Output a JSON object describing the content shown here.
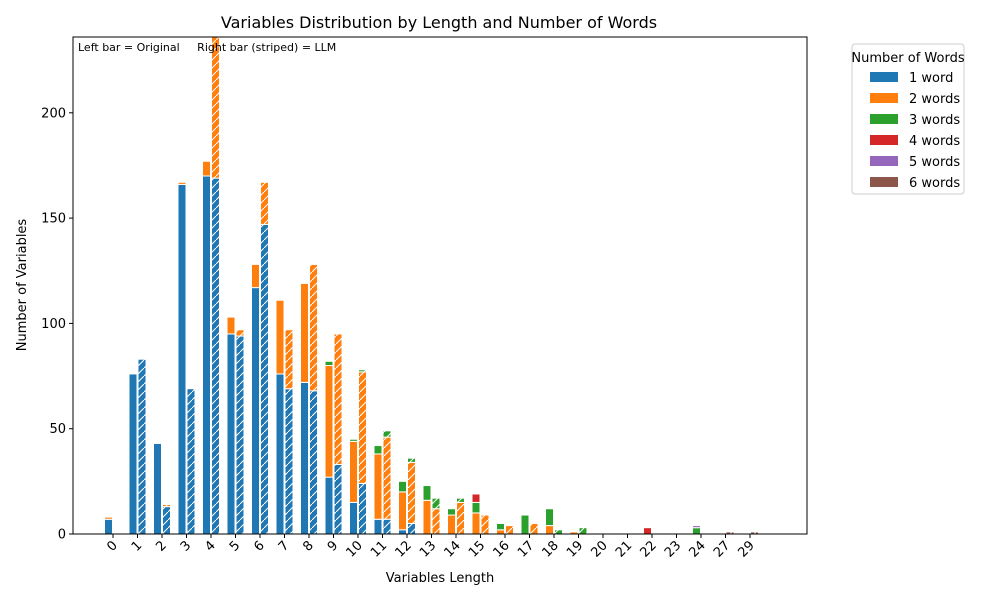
{
  "chart_data": {
    "type": "bar",
    "title": "Variables Distribution by Length and Number of Words",
    "xlabel": "Variables Length",
    "ylabel": "Number of Variables",
    "ylim": [
      0,
      236
    ],
    "yticks": [
      0,
      50,
      100,
      150,
      200
    ],
    "grid": false,
    "annotation": "Left bar = Original     Right bar (striped) = LLM",
    "legend": {
      "title": "Number of Words",
      "placement": "outside-right",
      "entries": [
        {
          "label": "1 word",
          "color": "#1f77b4"
        },
        {
          "label": "2 words",
          "color": "#ff7f0e"
        },
        {
          "label": "3 words",
          "color": "#2ca02c"
        },
        {
          "label": "4 words",
          "color": "#d62728"
        },
        {
          "label": "5 words",
          "color": "#9467bd"
        },
        {
          "label": "6 words",
          "color": "#8c564b"
        }
      ]
    },
    "categories": [
      "0",
      "1",
      "2",
      "3",
      "4",
      "5",
      "6",
      "7",
      "8",
      "9",
      "10",
      "11",
      "12",
      "13",
      "14",
      "15",
      "16",
      "17",
      "18",
      "19",
      "20",
      "21",
      "22",
      "23",
      "24",
      "27",
      "29"
    ],
    "series": [
      {
        "name": "1 word",
        "group": "Original",
        "values": [
          7,
          76,
          43,
          166,
          170,
          95,
          117,
          76,
          72,
          27,
          15,
          7,
          2,
          0,
          0,
          0,
          0,
          0,
          0,
          0,
          0,
          0,
          0,
          0,
          0,
          0,
          0
        ]
      },
      {
        "name": "2 words",
        "group": "Original",
        "values": [
          1,
          0,
          0,
          1,
          7,
          8,
          11,
          35,
          47,
          53,
          29,
          31,
          18,
          16,
          9,
          10,
          2,
          0,
          4,
          1,
          0,
          0,
          0,
          0,
          0,
          0,
          0
        ]
      },
      {
        "name": "3 words",
        "group": "Original",
        "values": [
          0,
          0,
          0,
          0,
          0,
          0,
          0,
          0,
          0,
          2,
          1,
          4,
          5,
          7,
          3,
          5,
          3,
          9,
          8,
          0,
          0,
          0,
          0,
          0,
          3,
          0,
          0
        ]
      },
      {
        "name": "4 words",
        "group": "Original",
        "values": [
          0,
          0,
          0,
          0,
          0,
          0,
          0,
          0,
          0,
          0,
          0,
          0,
          0,
          0,
          0,
          4,
          0,
          0,
          0,
          0,
          0,
          0,
          3,
          0,
          0,
          0,
          0
        ]
      },
      {
        "name": "5 words",
        "group": "Original",
        "values": [
          0,
          0,
          0,
          0,
          0,
          0,
          0,
          0,
          0,
          0,
          0,
          0,
          0,
          0,
          0,
          0,
          0,
          0,
          0,
          0,
          0,
          0,
          0,
          0,
          1,
          0,
          0
        ]
      },
      {
        "name": "6 words",
        "group": "Original",
        "values": [
          0,
          0,
          0,
          0,
          0,
          0,
          0,
          0,
          0,
          0,
          0,
          0,
          0,
          0,
          0,
          0,
          0,
          0,
          0,
          0,
          0,
          0,
          0,
          0,
          0,
          0,
          0
        ]
      },
      {
        "name": "1 word",
        "group": "LLM",
        "values": [
          0,
          83,
          13,
          69,
          169,
          94,
          147,
          69,
          68,
          33,
          24,
          7,
          5,
          0,
          0,
          0,
          0,
          0,
          0,
          0,
          0,
          0,
          0,
          0,
          0,
          0,
          0
        ]
      },
      {
        "name": "2 words",
        "group": "LLM",
        "values": [
          0,
          0,
          1,
          0,
          67,
          3,
          20,
          28,
          60,
          62,
          53,
          39,
          29,
          12,
          15,
          9,
          4,
          5,
          0,
          0,
          0,
          0,
          0,
          0,
          0,
          0,
          0
        ]
      },
      {
        "name": "3 words",
        "group": "LLM",
        "values": [
          0,
          0,
          0,
          0,
          0,
          0,
          0,
          0,
          0,
          0,
          1,
          3,
          2,
          5,
          2,
          0,
          0,
          0,
          2,
          3,
          0,
          0,
          0,
          0,
          0,
          0,
          0
        ]
      },
      {
        "name": "4 words",
        "group": "LLM",
        "values": [
          0,
          0,
          0,
          0,
          0,
          0,
          0,
          0,
          0,
          0,
          0,
          0,
          0,
          0,
          0,
          0,
          0,
          0,
          0,
          0,
          0,
          0,
          0,
          0,
          0,
          0,
          0
        ]
      },
      {
        "name": "5 words",
        "group": "LLM",
        "values": [
          0,
          0,
          0,
          0,
          0,
          0,
          0,
          0,
          0,
          0,
          0,
          0,
          0,
          0,
          0,
          0,
          0,
          0,
          0,
          0,
          0,
          0,
          0,
          0,
          0,
          0,
          0
        ]
      },
      {
        "name": "6 words",
        "group": "LLM",
        "values": [
          0,
          0,
          0,
          0,
          0,
          0,
          0,
          0,
          0,
          0,
          0,
          0,
          0,
          0,
          0,
          0,
          0,
          0,
          0,
          0,
          0,
          0,
          0,
          0,
          0,
          1,
          1
        ]
      }
    ]
  }
}
